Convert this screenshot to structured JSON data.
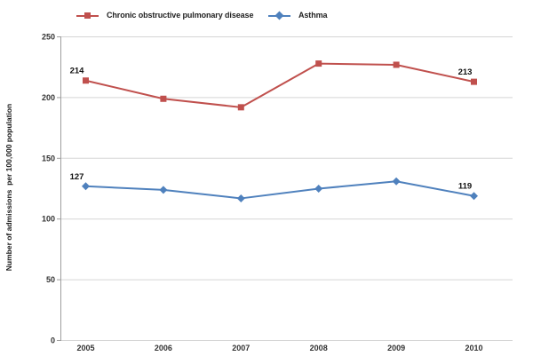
{
  "chart_data": {
    "type": "line",
    "categories": [
      "2005",
      "2006",
      "2007",
      "2008",
      "2009",
      "2010"
    ],
    "series": [
      {
        "name": "Chronic obstructive pulmonary disease",
        "color": "#C0504D",
        "marker": "square",
        "values": [
          214,
          199,
          192,
          228,
          227,
          213
        ]
      },
      {
        "name": "Asthma",
        "color": "#4F81BD",
        "marker": "diamond",
        "values": [
          127,
          124,
          117,
          125,
          131,
          119
        ]
      }
    ],
    "title": "",
    "xlabel": "",
    "ylabel": "Number of admissions  per 100,000 population",
    "ylim": [
      0,
      250
    ],
    "y_ticks": [
      0,
      50,
      100,
      150,
      200,
      250
    ],
    "grid": true,
    "legend_position": "top",
    "colors": {
      "gridline": "#D5D5D5",
      "axis": "#9E9E9E",
      "background": "#FFFFFF"
    },
    "data_labels": [
      {
        "series": 0,
        "index": 0,
        "text": "214"
      },
      {
        "series": 0,
        "index": 5,
        "text": "213"
      },
      {
        "series": 1,
        "index": 0,
        "text": "127"
      },
      {
        "series": 1,
        "index": 5,
        "text": "119"
      }
    ]
  }
}
